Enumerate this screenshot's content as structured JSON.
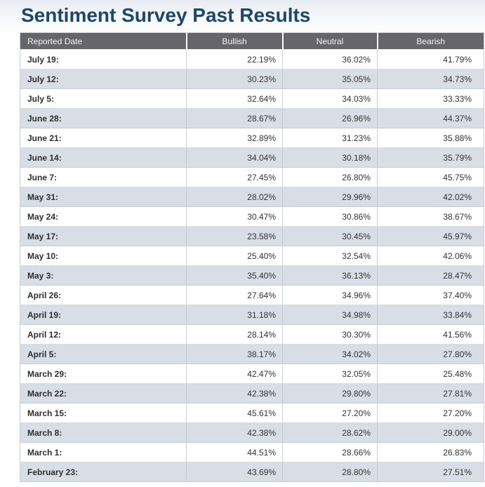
{
  "page": {
    "title": "Sentiment Survey Past Results"
  },
  "colors": {
    "title_text": "#1d466b",
    "header_background": "#65656a",
    "header_text": "#f4f4f4",
    "row_shaded_background": "#d9dde6",
    "row_white_background": "#ffffff",
    "cell_text": "#333333",
    "top_gradient_start": "#e7ebf1"
  },
  "table": {
    "columns": [
      "Reported Date",
      "Bullish",
      "Neutral",
      "Bearish"
    ],
    "rows": [
      {
        "date": "July 19:",
        "bullish": "22.19%",
        "neutral": "36.02%",
        "bearish": "41.79%"
      },
      {
        "date": "July 12:",
        "bullish": "30.23%",
        "neutral": "35.05%",
        "bearish": "34.73%"
      },
      {
        "date": "July 5:",
        "bullish": "32.64%",
        "neutral": "34.03%",
        "bearish": "33.33%"
      },
      {
        "date": "June 28:",
        "bullish": "28.67%",
        "neutral": "26.96%",
        "bearish": "44.37%"
      },
      {
        "date": "June 21:",
        "bullish": "32.89%",
        "neutral": "31.23%",
        "bearish": "35.88%"
      },
      {
        "date": "June 14:",
        "bullish": "34.04%",
        "neutral": "30.18%",
        "bearish": "35.79%"
      },
      {
        "date": "June 7:",
        "bullish": "27.45%",
        "neutral": "26.80%",
        "bearish": "45.75%"
      },
      {
        "date": "May 31:",
        "bullish": "28.02%",
        "neutral": "29.96%",
        "bearish": "42.02%"
      },
      {
        "date": "May 24:",
        "bullish": "30.47%",
        "neutral": "30.86%",
        "bearish": "38.67%"
      },
      {
        "date": "May 17:",
        "bullish": "23.58%",
        "neutral": "30.45%",
        "bearish": "45.97%"
      },
      {
        "date": "May 10:",
        "bullish": "25.40%",
        "neutral": "32.54%",
        "bearish": "42.06%"
      },
      {
        "date": "May 3:",
        "bullish": "35.40%",
        "neutral": "36.13%",
        "bearish": "28.47%"
      },
      {
        "date": "April 26:",
        "bullish": "27.64%",
        "neutral": "34.96%",
        "bearish": "37.40%"
      },
      {
        "date": "April 19:",
        "bullish": "31.18%",
        "neutral": "34.98%",
        "bearish": "33.84%"
      },
      {
        "date": "April 12:",
        "bullish": "28.14%",
        "neutral": "30.30%",
        "bearish": "41.56%"
      },
      {
        "date": "April 5:",
        "bullish": "38.17%",
        "neutral": "34.02%",
        "bearish": "27.80%"
      },
      {
        "date": "March 29:",
        "bullish": "42.47%",
        "neutral": "32.05%",
        "bearish": "25.48%"
      },
      {
        "date": "March 22:",
        "bullish": "42.38%",
        "neutral": "29.80%",
        "bearish": "27.81%"
      },
      {
        "date": "March 15:",
        "bullish": "45.61%",
        "neutral": "27.20%",
        "bearish": "27.20%"
      },
      {
        "date": "March 8:",
        "bullish": "42.38%",
        "neutral": "28.62%",
        "bearish": "29.00%"
      },
      {
        "date": "March 1:",
        "bullish": "44.51%",
        "neutral": "28.66%",
        "bearish": "26.83%"
      },
      {
        "date": "February 23:",
        "bullish": "43.69%",
        "neutral": "28.80%",
        "bearish": "27.51%"
      }
    ]
  }
}
